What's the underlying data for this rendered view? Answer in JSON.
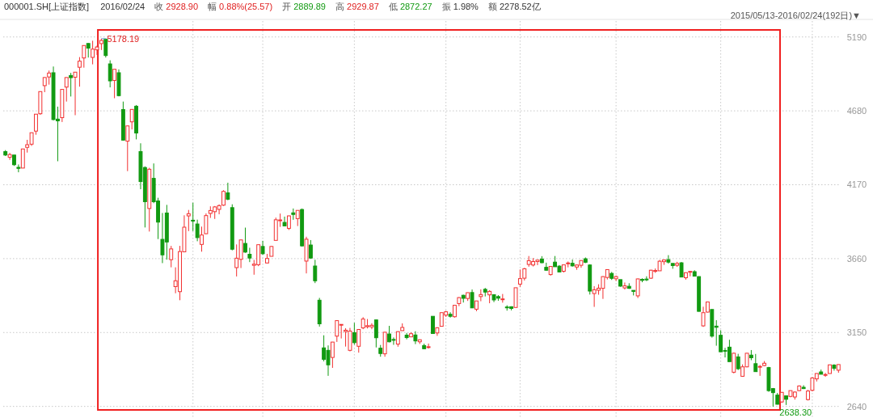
{
  "chart_data": {
    "type": "candlestick",
    "title": "000001.SH[上证指数]",
    "subtitle": "2015/05/13-2016/02/24(192日)▼",
    "annotations": [
      "2016/02/24",
      "收 2928.90",
      "幅 0.88%(25.57)",
      "开 2889.89",
      "高 2929.87",
      "低 2872.27",
      "振 1.98%",
      "额 2278.52亿",
      "5178.19",
      "2638.30"
    ],
    "categories": [
      null,
      null,
      null,
      null,
      null,
      null,
      null,
      null,
      null,
      null,
      null,
      null,
      null,
      null,
      null,
      null,
      null,
      null,
      null,
      null,
      null,
      null,
      null,
      null,
      null,
      null,
      null,
      null,
      null,
      null,
      null,
      null,
      null,
      null,
      null,
      null,
      null,
      null,
      null,
      null,
      null,
      null,
      null,
      null,
      null,
      null,
      null,
      null,
      null,
      null,
      null,
      null,
      null,
      null,
      null,
      null,
      null,
      null,
      null,
      null,
      null,
      null,
      null,
      null,
      null,
      null,
      null,
      null,
      null,
      null,
      null,
      null,
      null,
      null,
      null,
      null,
      null,
      null,
      null,
      null,
      null,
      null,
      null,
      null,
      null,
      null,
      null,
      null,
      null,
      null,
      null,
      null,
      null,
      null,
      null,
      null,
      null,
      null,
      null,
      null,
      null,
      null,
      null,
      null,
      null,
      null,
      null,
      null,
      null,
      null,
      null,
      null,
      null,
      null,
      null,
      null,
      null,
      null,
      null,
      null,
      null,
      null,
      null,
      null,
      null,
      null,
      null,
      null,
      null,
      null,
      null,
      null,
      null,
      null,
      null,
      null,
      null,
      null,
      null,
      null,
      null,
      null,
      null,
      null,
      null,
      null,
      null,
      null,
      null,
      null,
      null,
      null,
      null,
      null,
      null,
      null,
      null,
      null,
      null,
      null,
      null,
      null,
      null,
      null,
      null,
      null,
      null,
      null,
      null,
      null,
      null,
      null,
      null,
      null,
      null,
      null,
      null,
      null,
      null,
      null,
      null,
      null,
      null,
      null,
      null,
      null,
      null,
      null,
      null,
      null,
      null,
      null
    ],
    "ohlc": [
      [
        4399,
        4409,
        4368,
        4375
      ],
      [
        4360,
        4390,
        4342,
        4378
      ],
      [
        4375,
        4375,
        4300,
        4308
      ],
      [
        4290,
        4310,
        4256,
        4283
      ],
      [
        4285,
        4418,
        4285,
        4417
      ],
      [
        4428,
        4480,
        4392,
        4446
      ],
      [
        4450,
        4530,
        4438,
        4529
      ],
      [
        4540,
        4658,
        4515,
        4657
      ],
      [
        4660,
        4814,
        4653,
        4813
      ],
      [
        4854,
        4911,
        4809,
        4910
      ],
      [
        4914,
        4958,
        4861,
        4941
      ],
      [
        4943,
        4986,
        4614,
        4620
      ],
      [
        4623,
        4709,
        4332,
        4611
      ],
      [
        4633,
        4829,
        4603,
        4828
      ],
      [
        4844,
        4911,
        4744,
        4910
      ],
      [
        4924,
        4942,
        4779,
        4909
      ],
      [
        4912,
        4947,
        4650,
        4947
      ],
      [
        4981,
        5051,
        4847,
        5023
      ],
      [
        5045,
        5131,
        4978,
        5131
      ],
      [
        5145,
        5147,
        5048,
        5113
      ],
      [
        5049,
        5164,
        5001,
        5106
      ],
      [
        5101,
        5130,
        5066,
        5121
      ],
      [
        5144,
        5178.19,
        5100,
        5166
      ],
      [
        5175,
        5176,
        5048,
        5062
      ],
      [
        5004,
        5029,
        4842,
        4887
      ],
      [
        4890,
        4967,
        4767,
        4967
      ],
      [
        4943,
        4966,
        4780,
        4785
      ],
      [
        4689,
        4744,
        4476,
        4478
      ],
      [
        4471,
        4577,
        4264,
        4576
      ],
      [
        4604,
        4691,
        4552,
        4690
      ],
      [
        4712,
        4720,
        4483,
        4527
      ],
      [
        4399,
        4456,
        4139,
        4192
      ],
      [
        4289,
        4297,
        3875,
        4053
      ],
      [
        4006,
        4287,
        3847,
        4277
      ],
      [
        4214,
        4317,
        4043,
        4053
      ],
      [
        4058,
        4080,
        3795,
        3912
      ],
      [
        3793,
        3975,
        3629,
        3686
      ],
      [
        3975,
        4031,
        3653,
        3775
      ],
      [
        3653,
        3748,
        3600,
        3727
      ],
      [
        3467,
        3600,
        3421,
        3507
      ],
      [
        3432,
        3748,
        3373,
        3709
      ],
      [
        3707,
        3959,
        3706,
        3877
      ],
      [
        3955,
        3996,
        3850,
        3970
      ],
      [
        3925,
        4046,
        3850,
        3924
      ],
      [
        3899,
        3929,
        3780,
        3805
      ],
      [
        3758,
        3881,
        3708,
        3823
      ],
      [
        3832,
        3972,
        3830,
        3957
      ],
      [
        3972,
        4021,
        3941,
        3992
      ],
      [
        3984,
        4023,
        3934,
        4017
      ],
      [
        4000,
        4034,
        3966,
        4026
      ],
      [
        4029,
        4132,
        4024,
        4124
      ],
      [
        4114,
        4184,
        4063,
        4070
      ],
      [
        4012,
        4035,
        3717,
        3725
      ],
      [
        3598,
        3758,
        3537,
        3663
      ],
      [
        3655,
        3790,
        3595,
        3789
      ],
      [
        3765,
        3874,
        3700,
        3705
      ],
      [
        3690,
        3735,
        3636,
        3664
      ],
      [
        3614,
        3651,
        3549,
        3622
      ],
      [
        3618,
        3757,
        3608,
        3756
      ],
      [
        3744,
        3783,
        3686,
        3694
      ],
      [
        3630,
        3693,
        3629,
        3661
      ],
      [
        3676,
        3746,
        3676,
        3744
      ],
      [
        3786,
        3943,
        3785,
        3928
      ],
      [
        3926,
        3971,
        3879,
        3927
      ],
      [
        3910,
        3950,
        3883,
        3886
      ],
      [
        3869,
        3957,
        3858,
        3955
      ],
      [
        3976,
        4006,
        3928,
        3965
      ],
      [
        3936,
        3994,
        3885,
        3993
      ],
      [
        3999,
        4006,
        3743,
        3748
      ],
      [
        3643,
        3811,
        3558,
        3794
      ],
      [
        3754,
        3788,
        3659,
        3664
      ],
      [
        3609,
        3652,
        3491,
        3507
      ],
      [
        3373,
        3389,
        3191,
        3210
      ],
      [
        3044,
        3131,
        2951,
        2965
      ],
      [
        3027,
        3061,
        2851,
        2927
      ],
      [
        2978,
        3085,
        2906,
        3084
      ],
      [
        3125,
        3233,
        3085,
        3232
      ],
      [
        3204,
        3207,
        3109,
        3206
      ],
      [
        3157,
        3180,
        3053,
        3166
      ],
      [
        3027,
        3182,
        3020,
        3160
      ],
      [
        3149,
        3217,
        3066,
        3080
      ],
      [
        3055,
        3174,
        3011,
        3171
      ],
      [
        3182,
        3256,
        3173,
        3243
      ],
      [
        3190,
        3243,
        3178,
        3197
      ],
      [
        3189,
        3214,
        3173,
        3200
      ],
      [
        3237,
        3238,
        3047,
        3114
      ],
      [
        3042,
        3064,
        2983,
        3005
      ],
      [
        3003,
        3153,
        2983,
        3152
      ],
      [
        3140,
        3196,
        3082,
        3086
      ],
      [
        3102,
        3116,
        3065,
        3097
      ],
      [
        3070,
        3158,
        3052,
        3156
      ],
      [
        3163,
        3213,
        3162,
        3185
      ],
      [
        3132,
        3147,
        3103,
        3115
      ],
      [
        3120,
        3152,
        3118,
        3142
      ],
      [
        3133,
        3159,
        3070,
        3092
      ],
      [
        3086,
        3102,
        3071,
        3100
      ],
      [
        3060,
        3073,
        3036,
        3038
      ],
      [
        3048,
        3074,
        3039,
        3052
      ],
      [
        3262,
        3262,
        3143,
        3143
      ],
      [
        3147,
        3186,
        3127,
        3183
      ],
      [
        3193,
        3288,
        3191,
        3287
      ],
      [
        3270,
        3300,
        3258,
        3293
      ],
      [
        3276,
        3290,
        3253,
        3262
      ],
      [
        3259,
        3338,
        3253,
        3338
      ],
      [
        3350,
        3394,
        3332,
        3391
      ],
      [
        3407,
        3411,
        3357,
        3386
      ],
      [
        3385,
        3426,
        3368,
        3425
      ],
      [
        3426,
        3447,
        3320,
        3320
      ],
      [
        3311,
        3369,
        3297,
        3368
      ],
      [
        3398,
        3448,
        3366,
        3412
      ],
      [
        3448,
        3458,
        3399,
        3429
      ],
      [
        3410,
        3442,
        3352,
        3434
      ],
      [
        3411,
        3414,
        3360,
        3375
      ],
      [
        3398,
        3408,
        3369,
        3387
      ],
      [
        3377,
        3416,
        3356,
        3382
      ],
      [
        3326,
        3338,
        3301,
        3325
      ],
      [
        3328,
        3331,
        3303,
        3316
      ],
      [
        3323,
        3459,
        3323,
        3459
      ],
      [
        3484,
        3585,
        3465,
        3522
      ],
      [
        3525,
        3596,
        3509,
        3590
      ],
      [
        3620,
        3678,
        3604,
        3646
      ],
      [
        3616,
        3664,
        3606,
        3640
      ],
      [
        3640,
        3654,
        3615,
        3650
      ],
      [
        3657,
        3677,
        3628,
        3632
      ],
      [
        3600,
        3632,
        3576,
        3580
      ],
      [
        3550,
        3607,
        3543,
        3606
      ],
      [
        3636,
        3678,
        3604,
        3604
      ],
      [
        3608,
        3615,
        3566,
        3568
      ],
      [
        3573,
        3618,
        3564,
        3617
      ],
      [
        3625,
        3640,
        3600,
        3630
      ],
      [
        3628,
        3654,
        3605,
        3610
      ],
      [
        3602,
        3620,
        3583,
        3616
      ],
      [
        3614,
        3648,
        3597,
        3647
      ],
      [
        3659,
        3668,
        3629,
        3635
      ],
      [
        3616,
        3621,
        3412,
        3436
      ],
      [
        3419,
        3470,
        3327,
        3445
      ],
      [
        3442,
        3483,
        3411,
        3456
      ],
      [
        3455,
        3538,
        3382,
        3536
      ],
      [
        3530,
        3586,
        3516,
        3584
      ],
      [
        3558,
        3568,
        3513,
        3524
      ],
      [
        3521,
        3543,
        3506,
        3536
      ],
      [
        3515,
        3515,
        3466,
        3470
      ],
      [
        3458,
        3495,
        3447,
        3472
      ],
      [
        3469,
        3490,
        3451,
        3455
      ],
      [
        3441,
        3441,
        3406,
        3434
      ],
      [
        3403,
        3522,
        3388,
        3520
      ],
      [
        3517,
        3524,
        3497,
        3510
      ],
      [
        3519,
        3538,
        3505,
        3516
      ],
      [
        3525,
        3583,
        3520,
        3580
      ],
      [
        3572,
        3592,
        3562,
        3578
      ],
      [
        3576,
        3651,
        3576,
        3642
      ],
      [
        3639,
        3651,
        3617,
        3651
      ],
      [
        3653,
        3684,
        3626,
        3636
      ],
      [
        3627,
        3627,
        3590,
        3612
      ],
      [
        3614,
        3638,
        3603,
        3627
      ],
      [
        3631,
        3637,
        3533,
        3533
      ],
      [
        3528,
        3565,
        3515,
        3563
      ],
      [
        3566,
        3573,
        3538,
        3572
      ],
      [
        3570,
        3580,
        3538,
        3539
      ],
      [
        3536,
        3538,
        3295,
        3296
      ],
      [
        3196,
        3328,
        3189,
        3287
      ],
      [
        3291,
        3362,
        3288,
        3361
      ],
      [
        3309,
        3309,
        3115,
        3125
      ],
      [
        3194,
        3235,
        3059,
        3186
      ],
      [
        3131,
        3166,
        3016,
        3017
      ],
      [
        3026,
        3044,
        2978,
        3022
      ],
      [
        3049,
        3100,
        2949,
        2949
      ],
      [
        2876,
        3011,
        2868,
        3007
      ],
      [
        2982,
        3003,
        2891,
        2900
      ],
      [
        2848,
        2930,
        2844,
        2913
      ],
      [
        2913,
        3008,
        2910,
        3007
      ],
      [
        2994,
        3029,
        2959,
        2976
      ],
      [
        2935,
        3002,
        2880,
        2880
      ],
      [
        2912,
        2926,
        2851,
        2916
      ],
      [
        2922,
        2953,
        2917,
        2938
      ],
      [
        2908,
        2913,
        2741,
        2749
      ],
      [
        2763,
        2767,
        2638.3,
        2735
      ],
      [
        2718,
        2733,
        2653,
        2655
      ],
      [
        2671,
        2739,
        2664,
        2737
      ],
      [
        2713,
        2714,
        2650,
        2689
      ],
      [
        2709,
        2749,
        2703,
        2749
      ],
      [
        2705,
        2744,
        2687,
        2739
      ],
      [
        2749,
        2785,
        2746,
        2781
      ],
      [
        2772,
        2786,
        2760,
        2763
      ],
      [
        2687,
        2754,
        2681,
        2746
      ],
      [
        2751,
        2842,
        2744,
        2836
      ],
      [
        2830,
        2868,
        2812,
        2867
      ],
      [
        2878,
        2894,
        2862,
        2862
      ],
      [
        2856,
        2871,
        2844,
        2860
      ],
      [
        2867,
        2928,
        2867,
        2927
      ],
      [
        2925,
        2931,
        2887,
        2903
      ],
      [
        2889.89,
        2929.87,
        2872.27,
        2928.9
      ]
    ],
    "ylim": [
      2560,
      5300
    ],
    "yticks": [
      2640,
      3150,
      3660,
      4170,
      4680,
      5190
    ],
    "grid": true
  }
}
